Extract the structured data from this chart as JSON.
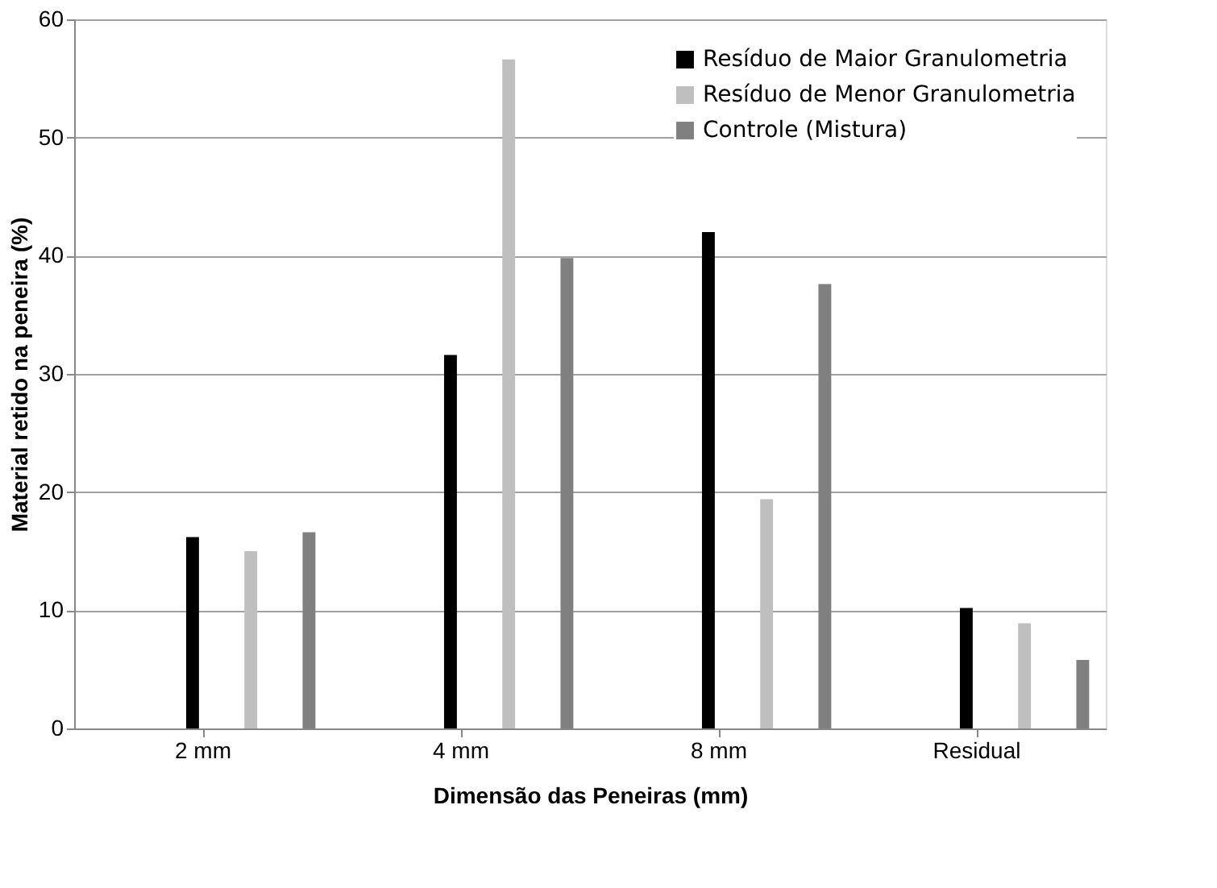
{
  "chart_data": {
    "type": "bar",
    "xlabel": "Dimensão das Peneiras (mm)",
    "ylabel": "Material retido na peneira (%)",
    "categories": [
      "2 mm",
      "4 mm",
      "8 mm",
      "Residual"
    ],
    "series": [
      {
        "name": "Resíduo de Maior Granulometria",
        "color": "#000000",
        "values": [
          16.2,
          31.6,
          42.0,
          10.2
        ]
      },
      {
        "name": "Resíduo de Menor Granulometria",
        "color": "#bfbfbf",
        "values": [
          15.0,
          56.6,
          19.4,
          8.9
        ]
      },
      {
        "name": "Controle (Mistura)",
        "color": "#808080",
        "values": [
          16.6,
          39.8,
          37.6,
          5.8
        ]
      }
    ],
    "ylim": [
      0,
      60
    ],
    "yticks": [
      0,
      10,
      20,
      30,
      40,
      50,
      60
    ],
    "grid": "y",
    "legend": "top right"
  }
}
